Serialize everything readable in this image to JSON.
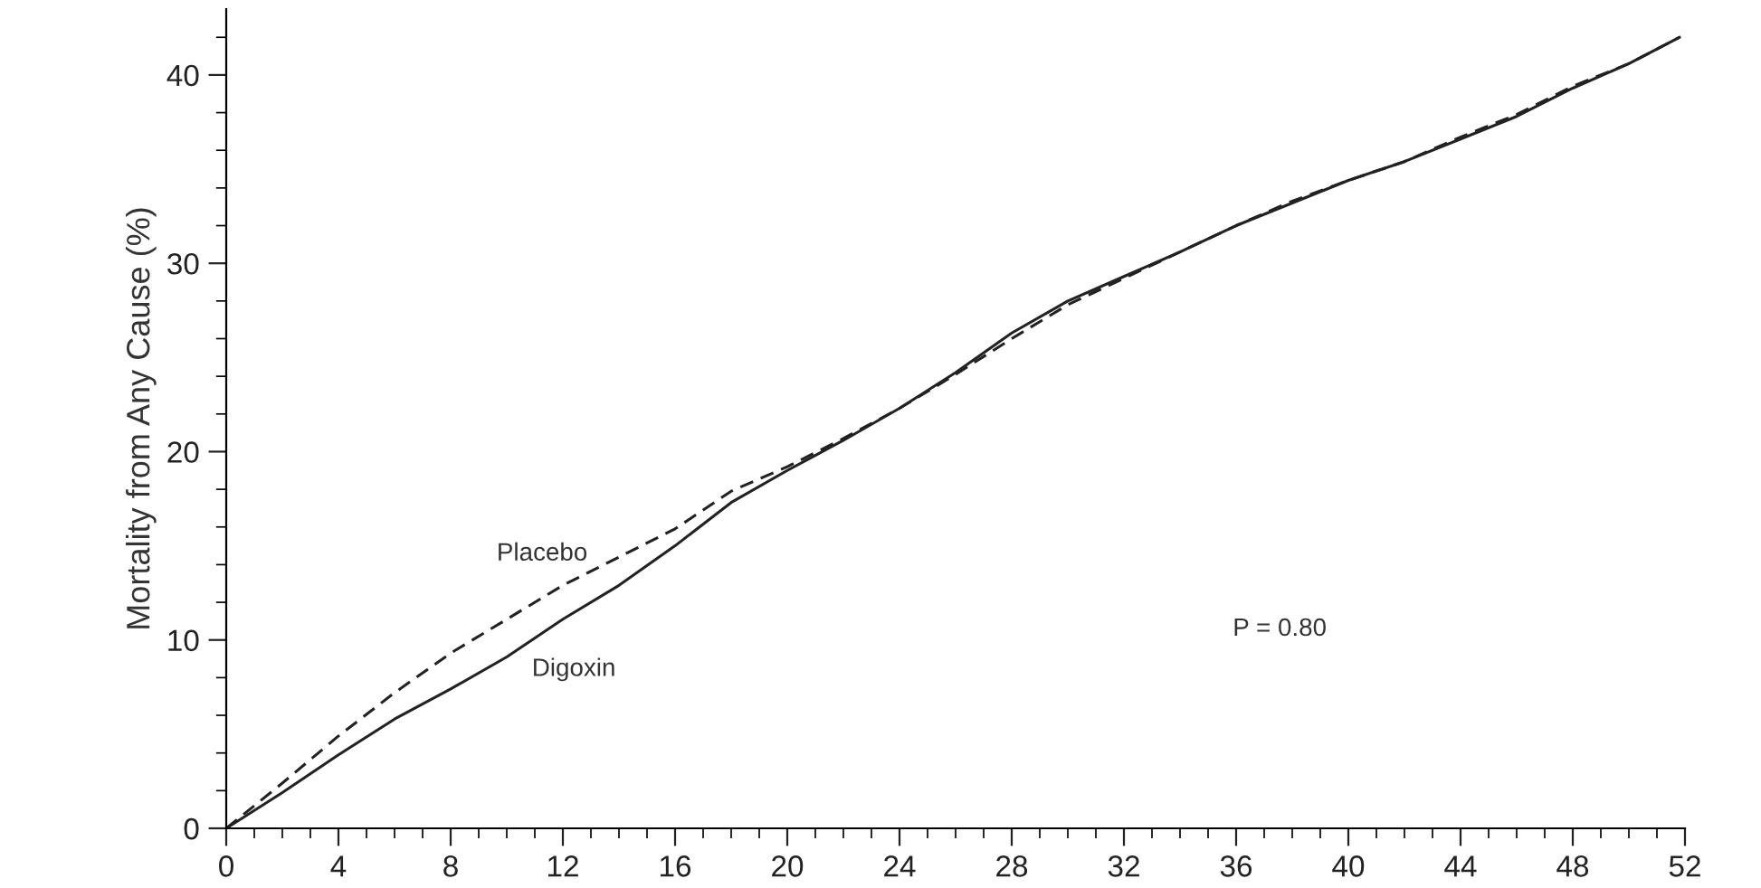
{
  "chart_data": {
    "type": "line",
    "ylabel": "Mortality from Any Cause (%)",
    "xlim": [
      0,
      52
    ],
    "ylim": [
      0,
      43.5
    ],
    "xticks": [
      0,
      {
        "value": 1,
        "label": null
      },
      {
        "value": 2,
        "label": null
      },
      {
        "value": 3,
        "label": null
      },
      4,
      {
        "value": 5,
        "label": null
      },
      {
        "value": 6,
        "label": null
      },
      {
        "value": 7,
        "label": null
      },
      8,
      {
        "value": 9,
        "label": null
      },
      {
        "value": 10,
        "label": null
      },
      {
        "value": 11,
        "label": null
      },
      12,
      {
        "value": 13,
        "label": null
      },
      {
        "value": 14,
        "label": null
      },
      {
        "value": 15,
        "label": null
      },
      16,
      {
        "value": 17,
        "label": null
      },
      {
        "value": 18,
        "label": null
      },
      {
        "value": 19,
        "label": null
      },
      20,
      {
        "value": 21,
        "label": null
      },
      {
        "value": 22,
        "label": null
      },
      {
        "value": 23,
        "label": null
      },
      24,
      {
        "value": 25,
        "label": null
      },
      {
        "value": 26,
        "label": null
      },
      {
        "value": 27,
        "label": null
      },
      28,
      {
        "value": 29,
        "label": null
      },
      {
        "value": 30,
        "label": null
      },
      {
        "value": 31,
        "label": null
      },
      32,
      {
        "value": 33,
        "label": null
      },
      {
        "value": 34,
        "label": null
      },
      {
        "value": 35,
        "label": null
      },
      36,
      {
        "value": 37,
        "label": null
      },
      {
        "value": 38,
        "label": null
      },
      {
        "value": 39,
        "label": null
      },
      40,
      {
        "value": 41,
        "label": null
      },
      {
        "value": 42,
        "label": null
      },
      {
        "value": 43,
        "label": null
      },
      44,
      {
        "value": 45,
        "label": null
      },
      {
        "value": 46,
        "label": null
      },
      {
        "value": 47,
        "label": null
      },
      48,
      {
        "value": 49,
        "label": null
      },
      {
        "value": 50,
        "label": null
      },
      {
        "value": 51,
        "label": null
      },
      52
    ],
    "yticks": [
      0,
      {
        "value": 2,
        "label": null
      },
      {
        "value": 4,
        "label": null
      },
      {
        "value": 6,
        "label": null
      },
      {
        "value": 8,
        "label": null
      },
      10,
      {
        "value": 12,
        "label": null
      },
      {
        "value": 14,
        "label": null
      },
      {
        "value": 16,
        "label": null
      },
      {
        "value": 18,
        "label": null
      },
      20,
      {
        "value": 22,
        "label": null
      },
      {
        "value": 24,
        "label": null
      },
      {
        "value": 26,
        "label": null
      },
      {
        "value": 28,
        "label": null
      },
      30,
      {
        "value": 32,
        "label": null
      },
      {
        "value": 34,
        "label": null
      },
      {
        "value": 36,
        "label": null
      },
      {
        "value": 38,
        "label": null
      },
      40,
      {
        "value": 42,
        "label": null
      }
    ],
    "x": [
      0,
      2,
      4,
      6,
      8,
      10,
      12,
      14,
      16,
      18,
      20,
      22,
      24,
      26,
      28,
      30,
      32,
      34,
      36,
      38,
      40,
      42,
      44,
      46,
      48,
      50,
      51.8
    ],
    "series": [
      {
        "name": "Placebo",
        "color": "#222222",
        "line_style": "dashed",
        "values": [
          0,
          2.4,
          4.9,
          7.2,
          9.3,
          11.1,
          12.9,
          14.4,
          15.9,
          17.9,
          19.2,
          20.7,
          22.3,
          24.1,
          26.0,
          27.8,
          29.2,
          30.6,
          32.0,
          33.3,
          34.4,
          35.4,
          36.7,
          37.9,
          39.4,
          40.6,
          42.0
        ]
      },
      {
        "name": "Digoxin",
        "color": "#222222",
        "line_style": "solid",
        "values": [
          0,
          1.9,
          3.9,
          5.8,
          7.4,
          9.1,
          11.1,
          12.9,
          15.0,
          17.3,
          19.0,
          20.6,
          22.3,
          24.2,
          26.3,
          28.0,
          29.3,
          30.6,
          32.0,
          33.2,
          34.4,
          35.4,
          36.6,
          37.8,
          39.3,
          40.6,
          42.0
        ]
      }
    ],
    "annotations": [
      "P = 0.80"
    ],
    "grid": false,
    "legend": false
  }
}
